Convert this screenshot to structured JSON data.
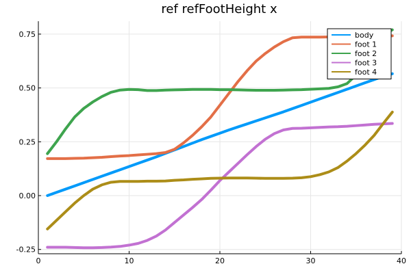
{
  "chart_data": {
    "type": "line",
    "title": "ref refFootHeight x",
    "xlabel": "",
    "ylabel": "",
    "xlim": [
      0,
      40
    ],
    "ylim": [
      -0.27,
      0.81
    ],
    "xticks": [
      0,
      10,
      20,
      30,
      40
    ],
    "xtick_labels": [
      "0",
      "10",
      "20",
      "30",
      "40"
    ],
    "yticks": [
      -0.25,
      0,
      0.25,
      0.5,
      0.75
    ],
    "ytick_labels": [
      "-0.25",
      "0.00",
      "0.25",
      "0.50",
      "0.75"
    ],
    "grid": true,
    "legend_position": "top-right",
    "x": [
      1,
      2,
      3,
      4,
      5,
      6,
      7,
      8,
      9,
      10,
      11,
      12,
      13,
      14,
      15,
      16,
      17,
      18,
      19,
      20,
      21,
      22,
      23,
      24,
      25,
      26,
      27,
      28,
      29,
      30,
      31,
      32,
      33,
      34,
      35,
      36,
      37,
      38,
      39
    ],
    "series": [
      {
        "name": "body",
        "color": "#009AFA",
        "values": [
          0.0,
          0.015,
          0.03,
          0.045,
          0.06,
          0.075,
          0.09,
          0.105,
          0.12,
          0.135,
          0.15,
          0.165,
          0.18,
          0.196,
          0.212,
          0.228,
          0.244,
          0.26,
          0.275,
          0.29,
          0.305,
          0.319,
          0.333,
          0.347,
          0.361,
          0.375,
          0.389,
          0.404,
          0.419,
          0.434,
          0.449,
          0.464,
          0.479,
          0.494,
          0.509,
          0.524,
          0.539,
          0.554,
          0.566
        ]
      },
      {
        "name": "foot 1",
        "color": "#E36F47",
        "values": [
          0.172,
          0.172,
          0.172,
          0.173,
          0.174,
          0.176,
          0.178,
          0.181,
          0.184,
          0.186,
          0.189,
          0.192,
          0.195,
          0.2,
          0.215,
          0.245,
          0.28,
          0.32,
          0.365,
          0.42,
          0.475,
          0.53,
          0.58,
          0.625,
          0.66,
          0.69,
          0.715,
          0.733,
          0.736,
          0.736,
          0.736,
          0.737,
          0.737,
          0.737,
          0.738,
          0.738,
          0.739,
          0.74,
          0.742
        ]
      },
      {
        "name": "foot 2",
        "color": "#3EA44E",
        "values": [
          0.195,
          0.25,
          0.31,
          0.365,
          0.405,
          0.435,
          0.46,
          0.48,
          0.49,
          0.493,
          0.492,
          0.488,
          0.488,
          0.49,
          0.491,
          0.492,
          0.493,
          0.493,
          0.493,
          0.492,
          0.492,
          0.491,
          0.49,
          0.489,
          0.489,
          0.489,
          0.49,
          0.491,
          0.492,
          0.494,
          0.496,
          0.498,
          0.505,
          0.52,
          0.56,
          0.62,
          0.69,
          0.745,
          0.77
        ]
      },
      {
        "name": "foot 3",
        "color": "#C271D2",
        "values": [
          -0.24,
          -0.24,
          -0.24,
          -0.241,
          -0.242,
          -0.242,
          -0.241,
          -0.239,
          -0.236,
          -0.23,
          -0.222,
          -0.208,
          -0.188,
          -0.16,
          -0.125,
          -0.09,
          -0.055,
          -0.018,
          0.025,
          0.07,
          0.11,
          0.15,
          0.19,
          0.228,
          0.262,
          0.288,
          0.305,
          0.312,
          0.313,
          0.315,
          0.317,
          0.319,
          0.32,
          0.322,
          0.325,
          0.328,
          0.331,
          0.333,
          0.335
        ]
      },
      {
        "name": "foot 4",
        "color": "#AC8D18",
        "values": [
          -0.155,
          -0.115,
          -0.075,
          -0.035,
          0.0,
          0.03,
          0.05,
          0.062,
          0.066,
          0.066,
          0.066,
          0.067,
          0.067,
          0.068,
          0.071,
          0.073,
          0.076,
          0.078,
          0.08,
          0.081,
          0.082,
          0.082,
          0.082,
          0.081,
          0.08,
          0.08,
          0.08,
          0.081,
          0.083,
          0.088,
          0.097,
          0.11,
          0.13,
          0.16,
          0.195,
          0.235,
          0.28,
          0.335,
          0.388
        ]
      }
    ]
  }
}
